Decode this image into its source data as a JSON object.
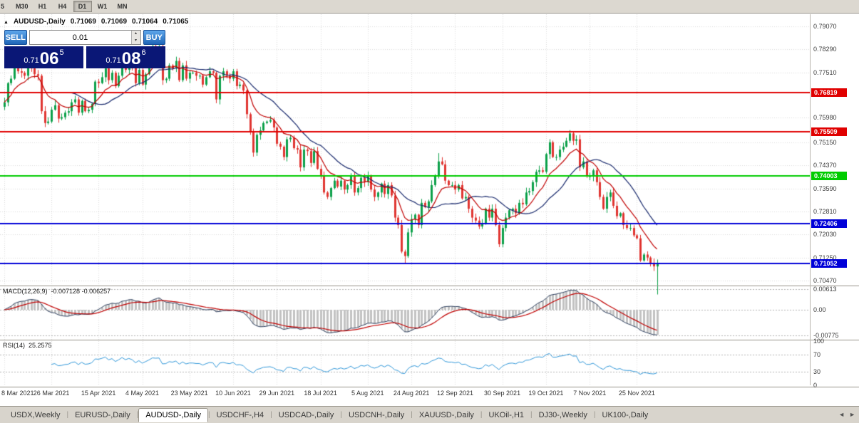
{
  "toolbar": {
    "timeframes": [
      {
        "label": "5",
        "active": false
      },
      {
        "label": "M30",
        "active": false
      },
      {
        "label": "H1",
        "active": false
      },
      {
        "label": "H4",
        "active": false
      },
      {
        "label": "D1",
        "active": true
      },
      {
        "label": "W1",
        "active": false
      },
      {
        "label": "MN",
        "active": false
      }
    ]
  },
  "title": {
    "marker": "▲",
    "symbol": "AUDUSD-,Daily",
    "o": "0.71069",
    "h": "0.71069",
    "l": "0.71064",
    "c": "0.71065"
  },
  "trade_panel": {
    "sell_label": "SELL",
    "buy_label": "BUY",
    "lot": "0.01",
    "spin_up": "▴",
    "spin_down": "▾",
    "sell_price": {
      "base": "0.71",
      "big": "06",
      "sup": "5"
    },
    "buy_price": {
      "base": "0.71",
      "big": "08",
      "sup": "6"
    }
  },
  "indicators": {
    "macd_label": "MACD(12,26,9)",
    "macd_values": "-0.007128 -0.006257",
    "rsi_label": "RSI(14)",
    "rsi_value": "25.2575"
  },
  "chart_data": {
    "type": "candlestick",
    "symbol": "AUDUSD-",
    "timeframe": "Daily",
    "title": "AUDUSD-,Daily 0.71069 0.71069 0.71064 0.71065",
    "price_axis": {
      "min": 0.7035,
      "max": 0.7948,
      "ticks": [
        {
          "t": "0.79070",
          "v": 0.7907
        },
        {
          "t": "0.78290",
          "v": 0.7829
        },
        {
          "t": "0.77510",
          "v": 0.7751
        },
        {
          "t": "0.75980",
          "v": 0.7598
        },
        {
          "t": "0.75150",
          "v": 0.7515
        },
        {
          "t": "0.74370",
          "v": 0.7437
        },
        {
          "t": "0.73590",
          "v": 0.7359
        },
        {
          "t": "0.72810",
          "v": 0.7281
        },
        {
          "t": "0.72030",
          "v": 0.7203
        },
        {
          "t": "0.71250",
          "v": 0.7125
        },
        {
          "t": "0.70470",
          "v": 0.7047
        }
      ]
    },
    "h_lines": [
      {
        "label": "0.76819",
        "value": 0.76819,
        "color": "#e00000"
      },
      {
        "label": "0.75509",
        "value": 0.75509,
        "color": "#e00000"
      },
      {
        "label": "0.74003",
        "value": 0.74003,
        "color": "#00cc00"
      },
      {
        "label": "0.72406",
        "value": 0.72406,
        "color": "#0000d8"
      },
      {
        "label": "0.71052",
        "value": 0.71052,
        "color": "#0000d8"
      }
    ],
    "x_labels": [
      {
        "i": 0,
        "t": "8 Mar 2021"
      },
      {
        "i": 14,
        "t": "26 Mar 2021"
      },
      {
        "i": 28,
        "t": "15 Apr 2021"
      },
      {
        "i": 41,
        "t": "4 May 2021"
      },
      {
        "i": 55,
        "t": "23 May 2021"
      },
      {
        "i": 68,
        "t": "10 Jun 2021"
      },
      {
        "i": 81,
        "t": "29 Jun 2021"
      },
      {
        "i": 94,
        "t": "18 Jul 2021"
      },
      {
        "i": 108,
        "t": "5 Aug 2021"
      },
      {
        "i": 121,
        "t": "24 Aug 2021"
      },
      {
        "i": 134,
        "t": "12 Sep 2021"
      },
      {
        "i": 148,
        "t": "30 Sep 2021"
      },
      {
        "i": 161,
        "t": "19 Oct 2021"
      },
      {
        "i": 174,
        "t": "7 Nov 2021"
      },
      {
        "i": 188,
        "t": "25 Nov 2021"
      }
    ],
    "closes": [
      0.765,
      0.7715,
      0.773,
      0.7785,
      0.7755,
      0.775,
      0.774,
      0.778,
      0.7765,
      0.7745,
      0.774,
      0.762,
      0.758,
      0.7585,
      0.7625,
      0.764,
      0.7595,
      0.76,
      0.7615,
      0.762,
      0.765,
      0.766,
      0.7615,
      0.7655,
      0.762,
      0.7625,
      0.7645,
      0.772,
      0.7715,
      0.7735,
      0.7765,
      0.7725,
      0.775,
      0.7705,
      0.774,
      0.7795,
      0.776,
      0.779,
      0.777,
      0.7715,
      0.776,
      0.771,
      0.7745,
      0.7785,
      0.784,
      0.7835,
      0.784,
      0.7725,
      0.773,
      0.7775,
      0.7765,
      0.779,
      0.7725,
      0.7775,
      0.773,
      0.775,
      0.775,
      0.774,
      0.774,
      0.771,
      0.7735,
      0.7755,
      0.775,
      0.766,
      0.774,
      0.7755,
      0.774,
      0.773,
      0.7755,
      0.7705,
      0.771,
      0.769,
      0.761,
      0.755,
      0.748,
      0.754,
      0.7555,
      0.758,
      0.7585,
      0.759,
      0.7565,
      0.751,
      0.75,
      0.7465,
      0.7525,
      0.753,
      0.7495,
      0.749,
      0.743,
      0.749,
      0.7485,
      0.7445,
      0.7485,
      0.7425,
      0.74,
      0.7345,
      0.733,
      0.736,
      0.7385,
      0.7365,
      0.7385,
      0.7355,
      0.737,
      0.74,
      0.7345,
      0.736,
      0.7395,
      0.738,
      0.74,
      0.7355,
      0.733,
      0.7345,
      0.7375,
      0.734,
      0.737,
      0.7335,
      0.726,
      0.7235,
      0.7145,
      0.713,
      0.721,
      0.7255,
      0.727,
      0.7235,
      0.731,
      0.7295,
      0.7315,
      0.737,
      0.74,
      0.745,
      0.744,
      0.7385,
      0.737,
      0.737,
      0.7355,
      0.737,
      0.7325,
      0.733,
      0.729,
      0.726,
      0.725,
      0.723,
      0.724,
      0.729,
      0.726,
      0.729,
      0.7235,
      0.717,
      0.7225,
      0.726,
      0.7285,
      0.729,
      0.7275,
      0.731,
      0.7305,
      0.7345,
      0.735,
      0.738,
      0.7415,
      0.742,
      0.7415,
      0.7475,
      0.7515,
      0.7465,
      0.7465,
      0.749,
      0.75,
      0.752,
      0.7545,
      0.752,
      0.7525,
      0.743,
      0.745,
      0.74,
      0.74,
      0.742,
      0.738,
      0.733,
      0.729,
      0.733,
      0.7345,
      0.73,
      0.7265,
      0.7275,
      0.7235,
      0.7225,
      0.7225,
      0.72,
      0.719,
      0.7115,
      0.7135,
      0.7125,
      0.7105,
      0.7095,
      0.71065
    ],
    "high_overrides": {
      "44": 0.785,
      "129": 0.7478,
      "168": 0.7556
    },
    "low_overrides": {
      "119": 0.7106,
      "194": 0.7
    },
    "macd": {
      "label": "MACD(12,26,9)",
      "main": -0.007128,
      "signal": -0.006257,
      "axis": [
        {
          "t": "0.00613",
          "v": 0.00613
        },
        {
          "t": "0.00",
          "v": 0
        },
        {
          "t": "-0.00775",
          "v": -0.00775
        }
      ]
    },
    "rsi": {
      "label": "RSI(14)",
      "value": 25.2575,
      "levels": [
        {
          "t": "100",
          "v": 100
        },
        {
          "t": "70",
          "v": 70
        },
        {
          "t": "30",
          "v": 30
        },
        {
          "t": "0",
          "v": 0
        }
      ]
    },
    "colors": {
      "up": "#0ca04a",
      "down": "#e03531",
      "ma_fast": "#c00000",
      "ma_slow": "#16276b",
      "macd_hist": "#c2c2c2",
      "macd_main": "#2c3e5d",
      "macd_signal": "#c00000",
      "rsi": "#2f96d8",
      "grid": "#dadada",
      "level_dash": "#b0b0b0"
    }
  },
  "tabs": {
    "items": [
      {
        "label": "USDX,Weekly",
        "active": false
      },
      {
        "label": "EURUSD-,Daily",
        "active": false
      },
      {
        "label": "AUDUSD-,Daily",
        "active": true
      },
      {
        "label": "USDCHF-,H4",
        "active": false
      },
      {
        "label": "USDCAD-,Daily",
        "active": false
      },
      {
        "label": "USDCNH-,Daily",
        "active": false
      },
      {
        "label": "XAUUSD-,Daily",
        "active": false
      },
      {
        "label": "UKOil-,H1",
        "active": false
      },
      {
        "label": "DJ30-,Weekly",
        "active": false
      },
      {
        "label": "UK100-,Daily",
        "active": false
      }
    ],
    "scroll_left": "◄",
    "scroll_right": "►"
  }
}
